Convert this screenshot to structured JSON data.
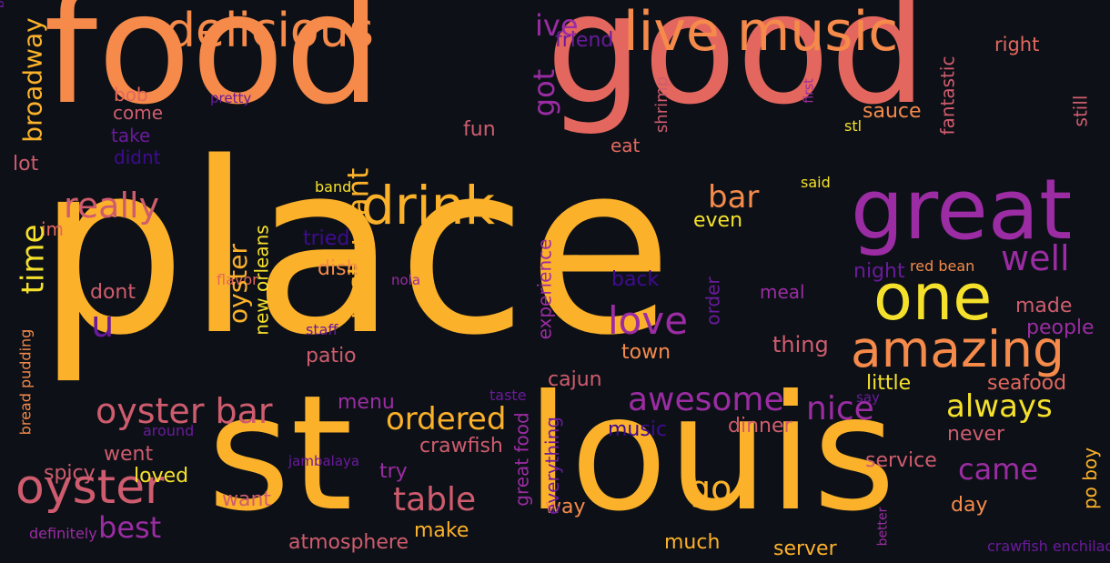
{
  "palette": {
    "background": "#0d1117",
    "gold": "#fcb12a",
    "orange": "#f58a4b",
    "coral": "#e3675e",
    "rose": "#cf5c6e",
    "yellow": "#f5e12b",
    "purple": "#9b2ca3",
    "violet": "#6a1a9c",
    "indigo": "#3f0b91"
  },
  "words": [
    {
      "text": "food",
      "size": 168,
      "weight": 0.95,
      "color": "#f58a4b",
      "rotated": false
    },
    {
      "text": "good",
      "size": 168,
      "weight": 0.95,
      "color": "#e3675e",
      "rotated": false
    },
    {
      "text": "place",
      "size": 260,
      "weight": 1.0,
      "color": "#fcb12a",
      "rotated": false
    },
    {
      "text": "st",
      "size": 175,
      "weight": 0.9,
      "color": "#fcb12a",
      "rotated": false
    },
    {
      "text": "louis",
      "size": 175,
      "weight": 0.9,
      "color": "#fcb12a",
      "rotated": false
    },
    {
      "text": "great",
      "size": 92,
      "weight": 0.6,
      "color": "#9b2ca3",
      "rotated": false
    },
    {
      "text": "delicious",
      "size": 52,
      "weight": 0.4,
      "color": "#f58a4b",
      "rotated": false
    },
    {
      "text": "live music",
      "size": 60,
      "weight": 0.45,
      "color": "#f58a4b",
      "rotated": false
    },
    {
      "text": "drink",
      "size": 58,
      "weight": 0.42,
      "color": "#fcb12a",
      "rotated": false
    },
    {
      "text": "one",
      "size": 70,
      "weight": 0.5,
      "color": "#f5e12b",
      "rotated": false
    },
    {
      "text": "amazing",
      "size": 55,
      "weight": 0.42,
      "color": "#f58a4b",
      "rotated": false
    },
    {
      "text": "oyster",
      "size": 52,
      "weight": 0.4,
      "color": "#cf5c6e",
      "rotated": false
    },
    {
      "text": "oyster bar",
      "size": 38,
      "weight": 0.32,
      "color": "#cf5c6e",
      "rotated": false
    },
    {
      "text": "really",
      "size": 38,
      "weight": 0.32,
      "color": "#cf5c6e",
      "rotated": false
    },
    {
      "text": "awesome",
      "size": 36,
      "weight": 0.3,
      "color": "#9b2ca3",
      "rotated": false
    },
    {
      "text": "love",
      "size": 42,
      "weight": 0.33,
      "color": "#9b2ca3",
      "rotated": false
    },
    {
      "text": "well",
      "size": 38,
      "weight": 0.3,
      "color": "#9b2ca3",
      "rotated": false
    },
    {
      "text": "nice",
      "size": 36,
      "weight": 0.29,
      "color": "#9b2ca3",
      "rotated": false
    },
    {
      "text": "always",
      "size": 34,
      "weight": 0.28,
      "color": "#f5e12b",
      "rotated": false
    },
    {
      "text": "ordered",
      "size": 34,
      "weight": 0.28,
      "color": "#fcb12a",
      "rotated": false
    },
    {
      "text": "table",
      "size": 36,
      "weight": 0.29,
      "color": "#cf5c6e",
      "rotated": false
    },
    {
      "text": "best",
      "size": 32,
      "weight": 0.27,
      "color": "#9b2ca3",
      "rotated": false
    },
    {
      "text": "bar",
      "size": 34,
      "weight": 0.28,
      "color": "#f58a4b",
      "rotated": false
    },
    {
      "text": "came",
      "size": 32,
      "weight": 0.27,
      "color": "#9b2ca3",
      "rotated": false
    },
    {
      "text": "go",
      "size": 38,
      "weight": 0.3,
      "color": "#fcb12a",
      "rotated": false
    },
    {
      "text": "u",
      "size": 40,
      "weight": 0.31,
      "color": "#6a1a9c",
      "rotated": false
    },
    {
      "text": "ive",
      "size": 32,
      "weight": 0.27,
      "color": "#9b2ca3",
      "rotated": false
    },
    {
      "text": "friend",
      "size": 22,
      "weight": 0.2,
      "color": "#6a1a9c",
      "rotated": false
    },
    {
      "text": "right",
      "size": 21,
      "weight": 0.2,
      "color": "#e3675e",
      "rotated": false
    },
    {
      "text": "bob",
      "size": 20,
      "weight": 0.19,
      "color": "#e3675e",
      "rotated": false
    },
    {
      "text": "come",
      "size": 20,
      "weight": 0.19,
      "color": "#cf5c6e",
      "rotated": false
    },
    {
      "text": "take",
      "size": 20,
      "weight": 0.19,
      "color": "#6a1a9c",
      "rotated": false
    },
    {
      "text": "pretty",
      "size": 15,
      "weight": 0.14,
      "color": "#6a1a9c",
      "rotated": false
    },
    {
      "text": "fun",
      "size": 22,
      "weight": 0.2,
      "color": "#cf5c6e",
      "rotated": false
    },
    {
      "text": "lot",
      "size": 22,
      "weight": 0.2,
      "color": "#cf5c6e",
      "rotated": false
    },
    {
      "text": "didnt",
      "size": 20,
      "weight": 0.19,
      "color": "#3f0b91",
      "rotated": false
    },
    {
      "text": "eat",
      "size": 20,
      "weight": 0.19,
      "color": "#e3675e",
      "rotated": false
    },
    {
      "text": "sauce",
      "size": 22,
      "weight": 0.2,
      "color": "#f58a4b",
      "rotated": false
    },
    {
      "text": "stl",
      "size": 16,
      "weight": 0.15,
      "color": "#f5e12b",
      "rotated": false
    },
    {
      "text": "said",
      "size": 16,
      "weight": 0.15,
      "color": "#f5e12b",
      "rotated": false
    },
    {
      "text": "band",
      "size": 16,
      "weight": 0.15,
      "color": "#f5e12b",
      "rotated": false
    },
    {
      "text": "im",
      "size": 20,
      "weight": 0.19,
      "color": "#e3675e",
      "rotated": false
    },
    {
      "text": "tried",
      "size": 22,
      "weight": 0.2,
      "color": "#3f0b91",
      "rotated": false
    },
    {
      "text": "even",
      "size": 22,
      "weight": 0.2,
      "color": "#f5e12b",
      "rotated": false
    },
    {
      "text": "dish",
      "size": 22,
      "weight": 0.2,
      "color": "#f58a4b",
      "rotated": false
    },
    {
      "text": "nola",
      "size": 15,
      "weight": 0.14,
      "color": "#9b2ca3",
      "rotated": false
    },
    {
      "text": "back",
      "size": 22,
      "weight": 0.2,
      "color": "#3f0b91",
      "rotated": false
    },
    {
      "text": "night",
      "size": 22,
      "weight": 0.2,
      "color": "#6a1a9c",
      "rotated": false
    },
    {
      "text": "red bean",
      "size": 16,
      "weight": 0.15,
      "color": "#f58a4b",
      "rotated": false
    },
    {
      "text": "dont",
      "size": 22,
      "weight": 0.2,
      "color": "#cf5c6e",
      "rotated": false
    },
    {
      "text": "meal",
      "size": 20,
      "weight": 0.19,
      "color": "#9b2ca3",
      "rotated": false
    },
    {
      "text": "made",
      "size": 22,
      "weight": 0.2,
      "color": "#cf5c6e",
      "rotated": false
    },
    {
      "text": "people",
      "size": 22,
      "weight": 0.2,
      "color": "#9b2ca3",
      "rotated": false
    },
    {
      "text": "staff",
      "size": 16,
      "weight": 0.15,
      "color": "#6a1a9c",
      "rotated": false
    },
    {
      "text": "thing",
      "size": 24,
      "weight": 0.21,
      "color": "#cf5c6e",
      "rotated": false
    },
    {
      "text": "patio",
      "size": 22,
      "weight": 0.2,
      "color": "#cf5c6e",
      "rotated": false
    },
    {
      "text": "town",
      "size": 22,
      "weight": 0.2,
      "color": "#f58a4b",
      "rotated": false
    },
    {
      "text": "little",
      "size": 22,
      "weight": 0.2,
      "color": "#f5e12b",
      "rotated": false
    },
    {
      "text": "seafood",
      "size": 22,
      "weight": 0.2,
      "color": "#e3675e",
      "rotated": false
    },
    {
      "text": "cajun",
      "size": 22,
      "weight": 0.2,
      "color": "#cf5c6e",
      "rotated": false
    },
    {
      "text": "menu",
      "size": 22,
      "weight": 0.2,
      "color": "#9b2ca3",
      "rotated": false
    },
    {
      "text": "taste",
      "size": 16,
      "weight": 0.15,
      "color": "#6a1a9c",
      "rotated": false
    },
    {
      "text": "say",
      "size": 15,
      "weight": 0.14,
      "color": "#6a1a9c",
      "rotated": false
    },
    {
      "text": "around",
      "size": 16,
      "weight": 0.15,
      "color": "#6a1a9c",
      "rotated": false
    },
    {
      "text": "dinner",
      "size": 22,
      "weight": 0.2,
      "color": "#cf5c6e",
      "rotated": false
    },
    {
      "text": "music",
      "size": 22,
      "weight": 0.2,
      "color": "#3f0b91",
      "rotated": false
    },
    {
      "text": "never",
      "size": 22,
      "weight": 0.2,
      "color": "#cf5c6e",
      "rotated": false
    },
    {
      "text": "went",
      "size": 22,
      "weight": 0.2,
      "color": "#cf5c6e",
      "rotated": false
    },
    {
      "text": "crawfish",
      "size": 22,
      "weight": 0.2,
      "color": "#cf5c6e",
      "rotated": false
    },
    {
      "text": "spicy",
      "size": 22,
      "weight": 0.2,
      "color": "#cf5c6e",
      "rotated": false
    },
    {
      "text": "loved",
      "size": 22,
      "weight": 0.2,
      "color": "#f5e12b",
      "rotated": false
    },
    {
      "text": "jambalaya",
      "size": 15,
      "weight": 0.14,
      "color": "#6a1a9c",
      "rotated": false
    },
    {
      "text": "try",
      "size": 22,
      "weight": 0.2,
      "color": "#9b2ca3",
      "rotated": false
    },
    {
      "text": "service",
      "size": 22,
      "weight": 0.2,
      "color": "#cf5c6e",
      "rotated": false
    },
    {
      "text": "want",
      "size": 22,
      "weight": 0.2,
      "color": "#cf5c6e",
      "rotated": false
    },
    {
      "text": "way",
      "size": 22,
      "weight": 0.2,
      "color": "#f58a4b",
      "rotated": false
    },
    {
      "text": "day",
      "size": 22,
      "weight": 0.2,
      "color": "#f58a4b",
      "rotated": false
    },
    {
      "text": "definitely",
      "size": 16,
      "weight": 0.15,
      "color": "#9b2ca3",
      "rotated": false
    },
    {
      "text": "make",
      "size": 22,
      "weight": 0.2,
      "color": "#fcb12a",
      "rotated": false
    },
    {
      "text": "atmosphere",
      "size": 22,
      "weight": 0.2,
      "color": "#cf5c6e",
      "rotated": false
    },
    {
      "text": "much",
      "size": 22,
      "weight": 0.2,
      "color": "#fcb12a",
      "rotated": false
    },
    {
      "text": "server",
      "size": 22,
      "weight": 0.2,
      "color": "#fcb12a",
      "rotated": false
    },
    {
      "text": "crawfish enchilada",
      "size": 16,
      "weight": 0.15,
      "color": "#6a1a9c",
      "rotated": false
    },
    {
      "text": "flavor",
      "size": 16,
      "weight": 0.15,
      "color": "#e3675e",
      "rotated": false
    },
    {
      "text": "restaurant",
      "size": 32,
      "weight": 0.27,
      "color": "#fcb12a",
      "rotated": true
    },
    {
      "text": "time",
      "size": 34,
      "weight": 0.28,
      "color": "#f5e12b",
      "rotated": true
    },
    {
      "text": "broadway",
      "size": 28,
      "weight": 0.25,
      "color": "#fcb12a",
      "rotated": true
    },
    {
      "text": "oyster",
      "size": 28,
      "weight": 0.25,
      "color": "#fcb12a",
      "rotated": true
    },
    {
      "text": "new orleans",
      "size": 20,
      "weight": 0.19,
      "color": "#f5e12b",
      "rotated": true
    },
    {
      "text": "great food",
      "size": 20,
      "weight": 0.19,
      "color": "#9b2ca3",
      "rotated": true
    },
    {
      "text": "got",
      "size": 32,
      "weight": 0.27,
      "color": "#9b2ca3",
      "rotated": true
    },
    {
      "text": "experience",
      "size": 20,
      "weight": 0.19,
      "color": "#9b2ca3",
      "rotated": true
    },
    {
      "text": "everything",
      "size": 20,
      "weight": 0.19,
      "color": "#6a1a9c",
      "rotated": true
    },
    {
      "text": "order",
      "size": 20,
      "weight": 0.19,
      "color": "#6a1a9c",
      "rotated": true
    },
    {
      "text": "fantastic",
      "size": 20,
      "weight": 0.19,
      "color": "#cf5c6e",
      "rotated": true
    },
    {
      "text": "still",
      "size": 20,
      "weight": 0.19,
      "color": "#cf5c6e",
      "rotated": true
    },
    {
      "text": "po boy",
      "size": 20,
      "weight": 0.19,
      "color": "#fcb12a",
      "rotated": true
    },
    {
      "text": "bread pudding",
      "size": 16,
      "weight": 0.15,
      "color": "#f58a4b",
      "rotated": true
    },
    {
      "text": "shrimp",
      "size": 18,
      "weight": 0.17,
      "color": "#cf5c6e",
      "rotated": true
    },
    {
      "text": "first",
      "size": 14,
      "weight": 0.13,
      "color": "#9b2ca3",
      "rotated": true
    },
    {
      "text": "better",
      "size": 14,
      "weight": 0.13,
      "color": "#9b2ca3",
      "rotated": true
    },
    {
      "text": "bit",
      "size": 14,
      "weight": 0.13,
      "color": "#6a1a9c",
      "rotated": true
    }
  ]
}
